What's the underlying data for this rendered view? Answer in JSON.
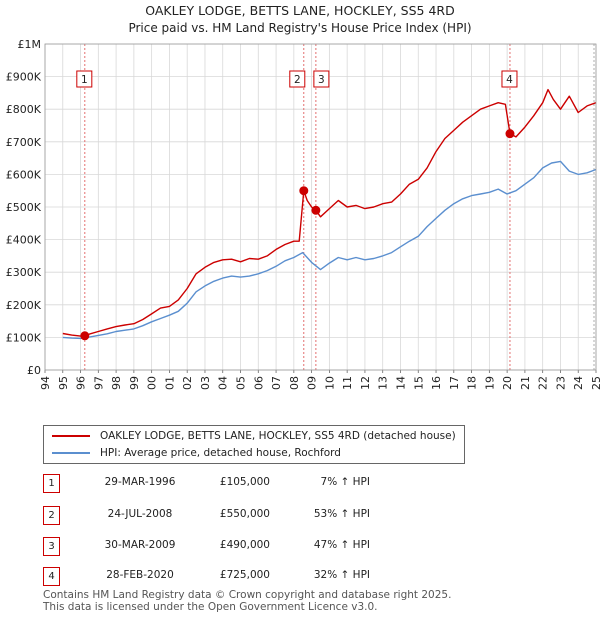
{
  "chart_data": {
    "type": "line",
    "title": "OAKLEY LODGE, BETTS LANE, HOCKLEY, SS5 4RD",
    "subtitle": "Price paid vs. HM Land Registry's House Price Index (HPI)",
    "xlim": [
      1995,
      2025
    ],
    "ylim": [
      0,
      1000000
    ],
    "x_ticks": [
      "1994",
      "1995",
      "1996",
      "1997",
      "1998",
      "1999",
      "2000",
      "2001",
      "2002",
      "2003",
      "2004",
      "2005",
      "2006",
      "2007",
      "2008",
      "2009",
      "2010",
      "2011",
      "2012",
      "2013",
      "2014",
      "2015",
      "2016",
      "2017",
      "2018",
      "2019",
      "2020",
      "2021",
      "2022",
      "2023",
      "2024",
      "2025"
    ],
    "y_ticks": [
      {
        "value": 0,
        "label": "£0"
      },
      {
        "value": 100000,
        "label": "£100K"
      },
      {
        "value": 200000,
        "label": "£200K"
      },
      {
        "value": 300000,
        "label": "£300K"
      },
      {
        "value": 400000,
        "label": "£400K"
      },
      {
        "value": 500000,
        "label": "£500K"
      },
      {
        "value": 600000,
        "label": "£600K"
      },
      {
        "value": 700000,
        "label": "£700K"
      },
      {
        "value": 800000,
        "label": "£800K"
      },
      {
        "value": 900000,
        "label": "£900K"
      },
      {
        "value": 1000000,
        "label": "£1M"
      }
    ],
    "series": [
      {
        "name": "OAKLEY LODGE, BETTS LANE, HOCKLEY, SS5 4RD (detached house)",
        "color": "#cc0000",
        "x": [
          1995.0,
          1995.5,
          1996.0,
          1996.24,
          1996.5,
          1997.0,
          1997.5,
          1998.0,
          1998.5,
          1999.0,
          1999.5,
          2000.0,
          2000.5,
          2001.0,
          2001.5,
          2002.0,
          2002.5,
          2003.0,
          2003.5,
          2004.0,
          2004.5,
          2005.0,
          2005.5,
          2006.0,
          2006.5,
          2007.0,
          2007.5,
          2008.0,
          2008.3,
          2008.56,
          2008.75,
          2009.0,
          2009.24,
          2009.5,
          2010.0,
          2010.5,
          2011.0,
          2011.5,
          2012.0,
          2012.5,
          2013.0,
          2013.5,
          2014.0,
          2014.5,
          2015.0,
          2015.5,
          2016.0,
          2016.5,
          2017.0,
          2017.5,
          2018.0,
          2018.5,
          2019.0,
          2019.5,
          2019.9,
          2020.16,
          2020.5,
          2021.0,
          2021.5,
          2022.0,
          2022.3,
          2022.6,
          2023.0,
          2023.5,
          2024.0,
          2024.5,
          2025.0
        ],
        "y": [
          112000,
          107000,
          104000,
          105000,
          110000,
          118000,
          126000,
          133000,
          138000,
          142000,
          155000,
          172000,
          190000,
          195000,
          215000,
          250000,
          295000,
          315000,
          330000,
          338000,
          340000,
          332000,
          342000,
          340000,
          350000,
          370000,
          385000,
          395000,
          395000,
          550000,
          520000,
          500000,
          490000,
          470000,
          495000,
          520000,
          500000,
          505000,
          495000,
          500000,
          510000,
          515000,
          540000,
          570000,
          585000,
          620000,
          670000,
          710000,
          735000,
          760000,
          780000,
          800000,
          810000,
          820000,
          815000,
          725000,
          715000,
          745000,
          780000,
          820000,
          860000,
          830000,
          800000,
          840000,
          790000,
          810000,
          820000
        ]
      },
      {
        "name": "HPI: Average price, detached house, Rochford",
        "color": "#5b8fcf",
        "x": [
          1995.0,
          1995.5,
          1996.0,
          1996.5,
          1997.0,
          1997.5,
          1998.0,
          1998.5,
          1999.0,
          1999.5,
          2000.0,
          2000.5,
          2001.0,
          2001.5,
          2002.0,
          2002.5,
          2003.0,
          2003.5,
          2004.0,
          2004.5,
          2005.0,
          2005.5,
          2006.0,
          2006.5,
          2007.0,
          2007.5,
          2008.0,
          2008.5,
          2009.0,
          2009.5,
          2010.0,
          2010.5,
          2011.0,
          2011.5,
          2012.0,
          2012.5,
          2013.0,
          2013.5,
          2014.0,
          2014.5,
          2015.0,
          2015.5,
          2016.0,
          2016.5,
          2017.0,
          2017.5,
          2018.0,
          2018.5,
          2019.0,
          2019.5,
          2020.0,
          2020.5,
          2021.0,
          2021.5,
          2022.0,
          2022.5,
          2023.0,
          2023.5,
          2024.0,
          2024.5,
          2025.0
        ],
        "y": [
          100000,
          98000,
          97000,
          101000,
          106000,
          111000,
          118000,
          122000,
          126000,
          136000,
          148000,
          158000,
          168000,
          180000,
          205000,
          240000,
          258000,
          272000,
          282000,
          288000,
          285000,
          288000,
          295000,
          305000,
          318000,
          335000,
          345000,
          360000,
          330000,
          308000,
          328000,
          345000,
          338000,
          345000,
          338000,
          342000,
          350000,
          360000,
          378000,
          395000,
          410000,
          440000,
          465000,
          490000,
          510000,
          525000,
          535000,
          540000,
          545000,
          555000,
          540000,
          550000,
          570000,
          590000,
          620000,
          635000,
          640000,
          610000,
          600000,
          605000,
          615000
        ]
      }
    ],
    "markers": [
      {
        "label": "1",
        "x": 1996.24,
        "y": 105000
      },
      {
        "label": "2",
        "x": 2008.56,
        "y": 550000
      },
      {
        "label": "3",
        "x": 2009.24,
        "y": 490000
      },
      {
        "label": "4",
        "x": 2020.16,
        "y": 725000
      }
    ]
  },
  "legend": {
    "property_label": "OAKLEY LODGE, BETTS LANE, HOCKLEY, SS5 4RD (detached house)",
    "hpi_label": "HPI: Average price, detached house, Rochford",
    "property_color": "#cc0000",
    "hpi_color": "#5b8fcf"
  },
  "sales": [
    {
      "num": "1",
      "date": "29-MAR-1996",
      "price": "£105,000",
      "hpi": "7% ↑ HPI"
    },
    {
      "num": "2",
      "date": "24-JUL-2008",
      "price": "£550,000",
      "hpi": "53% ↑ HPI"
    },
    {
      "num": "3",
      "date": "30-MAR-2009",
      "price": "£490,000",
      "hpi": "47% ↑ HPI"
    },
    {
      "num": "4",
      "date": "28-FEB-2020",
      "price": "£725,000",
      "hpi": "32% ↑ HPI"
    }
  ],
  "footer": {
    "line1": "Contains HM Land Registry data © Crown copyright and database right 2025.",
    "line2": "This data is licensed under the Open Government Licence v3.0."
  }
}
